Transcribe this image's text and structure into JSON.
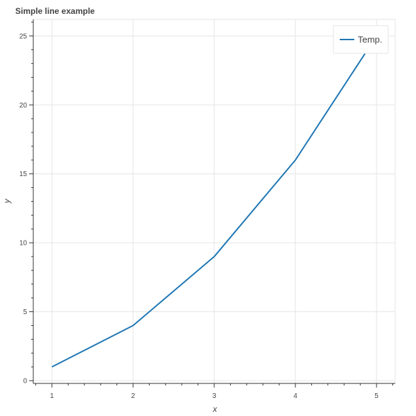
{
  "chart_data": {
    "type": "line",
    "title": "Simple line example",
    "xlabel": "x",
    "ylabel": "y",
    "x": [
      1,
      2,
      3,
      4,
      5
    ],
    "series": [
      {
        "name": "Temp.",
        "values": [
          1,
          4,
          9,
          16,
          25
        ],
        "color": "#1f77b4"
      }
    ],
    "xlim": [
      0.77,
      5.23
    ],
    "ylim": [
      -0.2,
      26.2
    ],
    "xticks": [
      1,
      2,
      3,
      4,
      5
    ],
    "yticks": [
      0,
      5,
      10,
      15,
      20,
      25
    ],
    "grid": true,
    "legend_position": "top-right"
  }
}
